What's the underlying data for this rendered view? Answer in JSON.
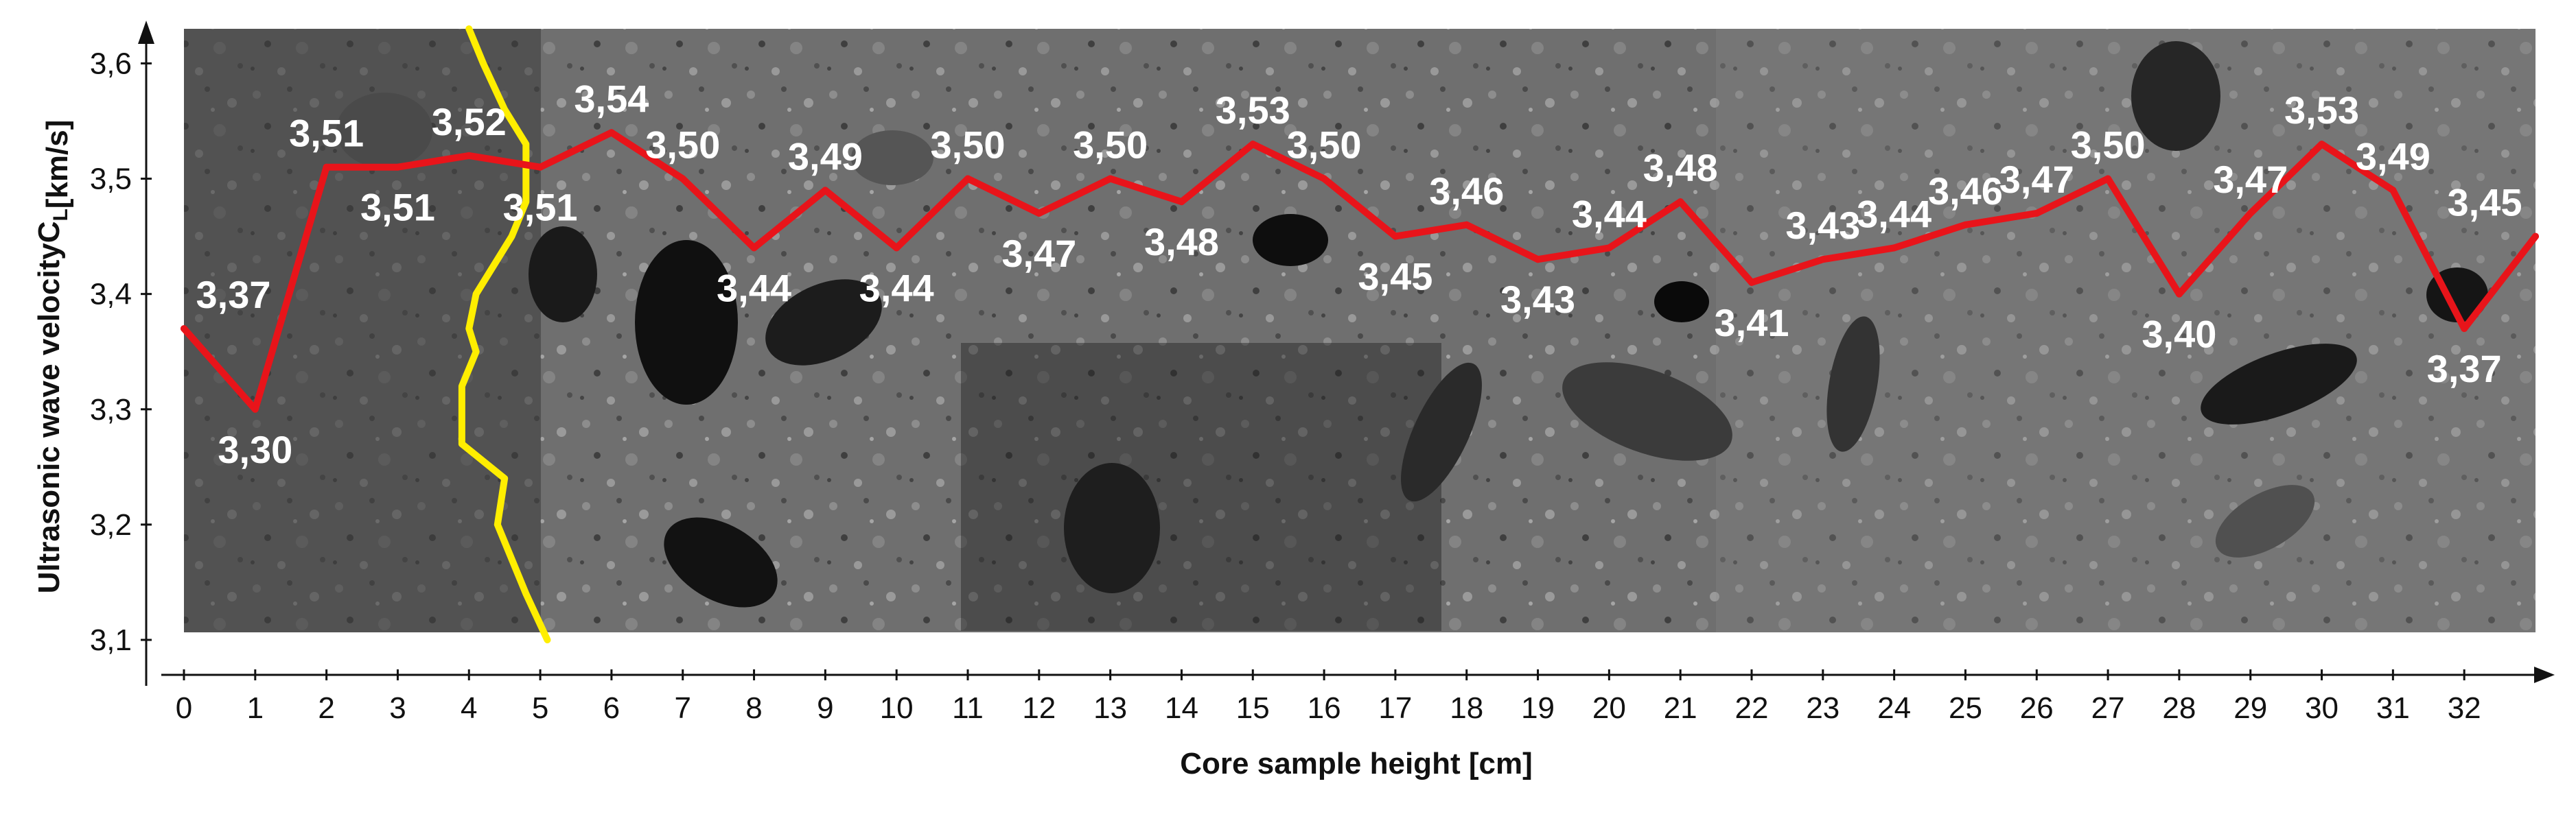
{
  "chart_data": {
    "type": "line",
    "title": "",
    "xlabel": "Core sample height [cm]",
    "ylabel": "Ultrasonic wave velocity",
    "ylabel_symbol": "C",
    "ylabel_subscript": "L",
    "ylabel_unit": "[km/s]",
    "xlim": [
      0,
      33
    ],
    "ylim": [
      3.1,
      3.63
    ],
    "x_ticks": [
      0,
      1,
      2,
      3,
      4,
      5,
      6,
      7,
      8,
      9,
      10,
      11,
      12,
      13,
      14,
      15,
      16,
      17,
      18,
      19,
      20,
      21,
      22,
      23,
      24,
      25,
      26,
      27,
      28,
      29,
      30,
      31,
      32
    ],
    "y_ticks": [
      3.1,
      3.2,
      3.3,
      3.4,
      3.5,
      3.6
    ],
    "y_tick_labels": [
      "3,1",
      "3,2",
      "3,3",
      "3,4",
      "3,5",
      "3,6"
    ],
    "decimal_separator": ",",
    "grid": false,
    "background": "photograph of a concrete core sample cross-section",
    "series": [
      {
        "color": "#e8141a",
        "x": [
          0,
          1,
          2,
          3,
          4,
          5,
          6,
          7,
          8,
          9,
          10,
          11,
          12,
          13,
          14,
          15,
          16,
          17,
          18,
          19,
          20,
          21,
          22,
          23,
          24,
          25,
          26,
          27,
          28,
          29,
          30,
          31,
          32,
          33
        ],
        "values": [
          3.37,
          3.3,
          3.51,
          3.51,
          3.52,
          3.51,
          3.54,
          3.5,
          3.44,
          3.49,
          3.44,
          3.5,
          3.47,
          3.5,
          3.48,
          3.53,
          3.5,
          3.45,
          3.46,
          3.43,
          3.44,
          3.48,
          3.41,
          3.43,
          3.44,
          3.46,
          3.47,
          3.5,
          3.4,
          3.47,
          3.53,
          3.49,
          3.37,
          3.45
        ],
        "labels": [
          "3,37",
          "3,30",
          "3,51",
          "3,51",
          "3,52",
          "3,51",
          "3,54",
          "3,50",
          "3,44",
          "3,49",
          "3,44",
          "3,50",
          "3,47",
          "3,50",
          "3,48",
          "3,53",
          "3,50",
          "3,45",
          "3,46",
          "3,43",
          "3,44",
          "3,48",
          "3,41",
          "3,43",
          "3,44",
          "3,46",
          "3,47",
          "3,50",
          "3,40",
          "3,47",
          "3,53",
          "3,49",
          "3,37",
          "3,45"
        ]
      }
    ],
    "boundary_line": {
      "color": "#ffee00",
      "x": [
        4.0,
        4.2,
        4.5,
        4.8,
        4.8,
        4.6,
        4.4,
        4.1,
        4.0,
        4.1,
        3.9,
        3.9,
        4.5,
        4.4,
        4.8,
        5.1
      ],
      "y": [
        3.63,
        3.6,
        3.56,
        3.53,
        3.48,
        3.45,
        3.43,
        3.4,
        3.37,
        3.35,
        3.32,
        3.27,
        3.24,
        3.2,
        3.14,
        3.1
      ]
    }
  }
}
